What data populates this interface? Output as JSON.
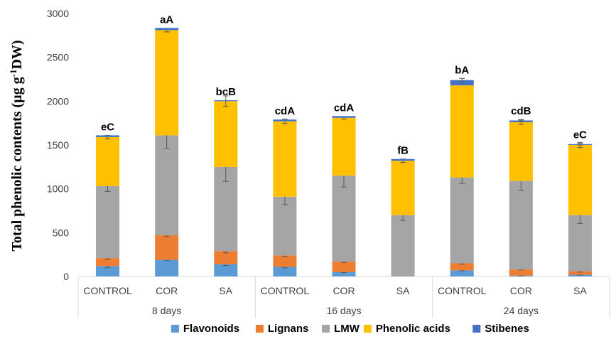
{
  "chart_data": {
    "type": "bar",
    "stacked": true,
    "ylabel_main": "Total phenolic contents (µg g",
    "ylabel_sup": "-1",
    "ylabel_end": "DW)",
    "ylim": [
      0,
      3000
    ],
    "yticks": [
      "0",
      "500",
      "1000",
      "1500",
      "2000",
      "2500",
      "3000"
    ],
    "groups": [
      "8 days",
      "16 days",
      "24 days"
    ],
    "categories": [
      "CONTROL",
      "COR",
      "SA",
      "CONTROL",
      "COR",
      "SA",
      "CONTROL",
      "COR",
      "SA"
    ],
    "group_index": [
      0,
      0,
      0,
      1,
      1,
      1,
      2,
      2,
      2
    ],
    "significance": [
      "eC",
      "aA",
      "bcB",
      "cdA",
      "cdA",
      "fB",
      "bA",
      "cdB",
      "eC"
    ],
    "legend_position": "bottom",
    "series": [
      {
        "name": "Flavonoids",
        "color": "#5B9BD5",
        "values": [
          120,
          190,
          140,
          110,
          50,
          0,
          70,
          10,
          20
        ],
        "errors": [
          20,
          10,
          15,
          10,
          5,
          0,
          5,
          3,
          5
        ]
      },
      {
        "name": "Lignans",
        "color": "#ED7D31",
        "values": [
          90,
          280,
          150,
          130,
          120,
          0,
          80,
          70,
          40
        ],
        "errors": [
          15,
          15,
          20,
          10,
          10,
          0,
          10,
          5,
          10
        ]
      },
      {
        "name": "LMW",
        "color": "#A5A5A5",
        "values": [
          820,
          1140,
          960,
          670,
          980,
          700,
          980,
          1010,
          640
        ],
        "errors": [
          60,
          150,
          165,
          90,
          130,
          60,
          70,
          110,
          95
        ]
      },
      {
        "name": "Phenolic acids",
        "color": "#FFC000",
        "values": [
          560,
          1200,
          750,
          860,
          660,
          620,
          1050,
          670,
          800
        ],
        "errors": [
          20,
          20,
          60,
          25,
          15,
          20,
          0,
          25,
          30
        ]
      },
      {
        "name": "Stibenes",
        "color": "#4472C4",
        "values": [
          20,
          25,
          10,
          20,
          20,
          20,
          60,
          20,
          10
        ],
        "errors": [
          0,
          0,
          0,
          0,
          0,
          0,
          20,
          10,
          10
        ]
      }
    ]
  }
}
